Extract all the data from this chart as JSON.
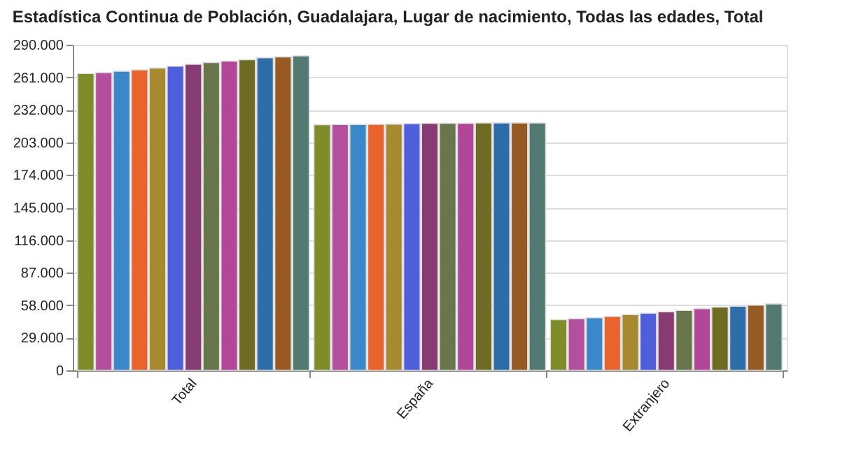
{
  "chart_data": {
    "type": "bar",
    "title": "Estadística Continua de Población, Guadalajara, Lugar de nacimiento, Todas las edades, Total",
    "categories": [
      "Total",
      "España",
      "Extranjero"
    ],
    "series": [
      {
        "color": "#7f8c2a",
        "values": [
          264300,
          218700,
          45100
        ]
      },
      {
        "color": "#b34f9c",
        "values": [
          265100,
          218900,
          46000
        ]
      },
      {
        "color": "#3a87c9",
        "values": [
          266400,
          219000,
          46800
        ]
      },
      {
        "color": "#e8632d",
        "values": [
          267600,
          219100,
          48000
        ]
      },
      {
        "color": "#a78a30",
        "values": [
          269200,
          219300,
          49600
        ]
      },
      {
        "color": "#4f5fdc",
        "values": [
          270900,
          219700,
          50900
        ]
      },
      {
        "color": "#873b72",
        "values": [
          272600,
          220000,
          52100
        ]
      },
      {
        "color": "#69754b",
        "values": [
          274200,
          220000,
          53400
        ]
      },
      {
        "color": "#b2479a",
        "values": [
          275400,
          220000,
          55000
        ]
      },
      {
        "color": "#6e6c24",
        "values": [
          276700,
          220300,
          56300
        ]
      },
      {
        "color": "#2e6ea8",
        "values": [
          278400,
          220400,
          57100
        ]
      },
      {
        "color": "#965a22",
        "values": [
          279200,
          220400,
          58000
        ]
      },
      {
        "color": "#527a72",
        "values": [
          280000,
          220300,
          59200
        ]
      }
    ],
    "ylim": [
      0,
      290000
    ],
    "yticks": [
      0,
      {
        "value": 29000,
        "label": "29.000"
      },
      {
        "value": 58000,
        "label": "58.000"
      },
      {
        "value": 87000,
        "label": "87.000"
      },
      {
        "value": 116000,
        "label": "116.000"
      },
      {
        "value": 145000,
        "label": "145.000"
      },
      {
        "value": 174000,
        "label": "174.000"
      },
      {
        "value": 203000,
        "label": "203.000"
      },
      {
        "value": 232000,
        "label": "232.000"
      },
      {
        "value": 261000,
        "label": "261.000"
      },
      {
        "value": 290000,
        "label": "290.000"
      }
    ],
    "grid": "y",
    "legend": false
  }
}
